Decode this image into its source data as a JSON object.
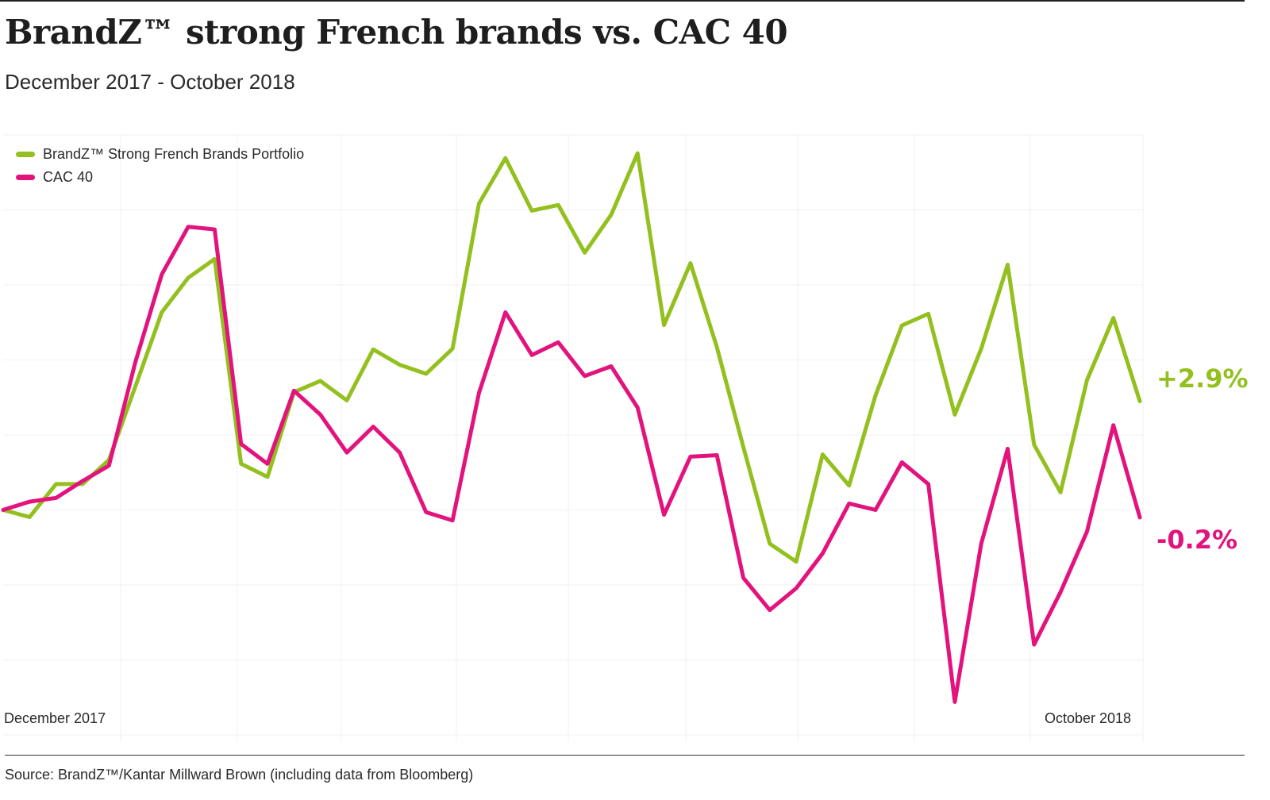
{
  "title": "BrandZ™ strong French brands vs. CAC 40",
  "subtitle": "December 2017 - October 2018",
  "source": "Source: BrandZ™/Kantar Millward Brown (including data from Bloomberg)",
  "chart_data": {
    "type": "line",
    "title": "BrandZ™ strong French brands vs. CAC 40",
    "subtitle": "December 2017 - October 2018",
    "x_tick_labels": [
      "December 2017",
      "October 2018"
    ],
    "ylim": [
      -6,
      10
    ],
    "grid": true,
    "legend_position": "top-left",
    "series": [
      {
        "name": "BrandZ™ Strong French Brands Portfolio",
        "color": "#93c01f",
        "end_label": "+2.9%",
        "values": [
          0,
          -0.19,
          0.69,
          0.69,
          1.33,
          3.29,
          5.27,
          6.19,
          6.69,
          1.23,
          0.88,
          3.14,
          3.44,
          2.92,
          4.28,
          3.87,
          3.63,
          4.3,
          8.17,
          9.38,
          7.98,
          8.13,
          6.86,
          7.87,
          9.51,
          4.93,
          6.58,
          4.34,
          1.68,
          -0.9,
          -1.38,
          1.48,
          0.65,
          3.05,
          4.92,
          5.23,
          2.54,
          4.3,
          6.54,
          1.74,
          0.47,
          3.46,
          5.12,
          2.9
        ]
      },
      {
        "name": "CAC 40",
        "color": "#e3137e",
        "end_label": "-0.2%",
        "values": [
          0,
          0.22,
          0.32,
          0.77,
          1.18,
          3.94,
          6.28,
          7.55,
          7.48,
          1.76,
          1.23,
          3.18,
          2.54,
          1.53,
          2.22,
          1.53,
          -0.06,
          -0.28,
          3.12,
          5.27,
          4.13,
          4.47,
          3.57,
          3.83,
          2.73,
          -0.13,
          1.42,
          1.46,
          -1.81,
          -2.67,
          -2.09,
          -1.16,
          0.17,
          0,
          1.27,
          0.69,
          -5.12,
          -0.9,
          1.63,
          -3.59,
          -2.19,
          -0.58,
          2.26,
          -0.2
        ]
      }
    ]
  }
}
